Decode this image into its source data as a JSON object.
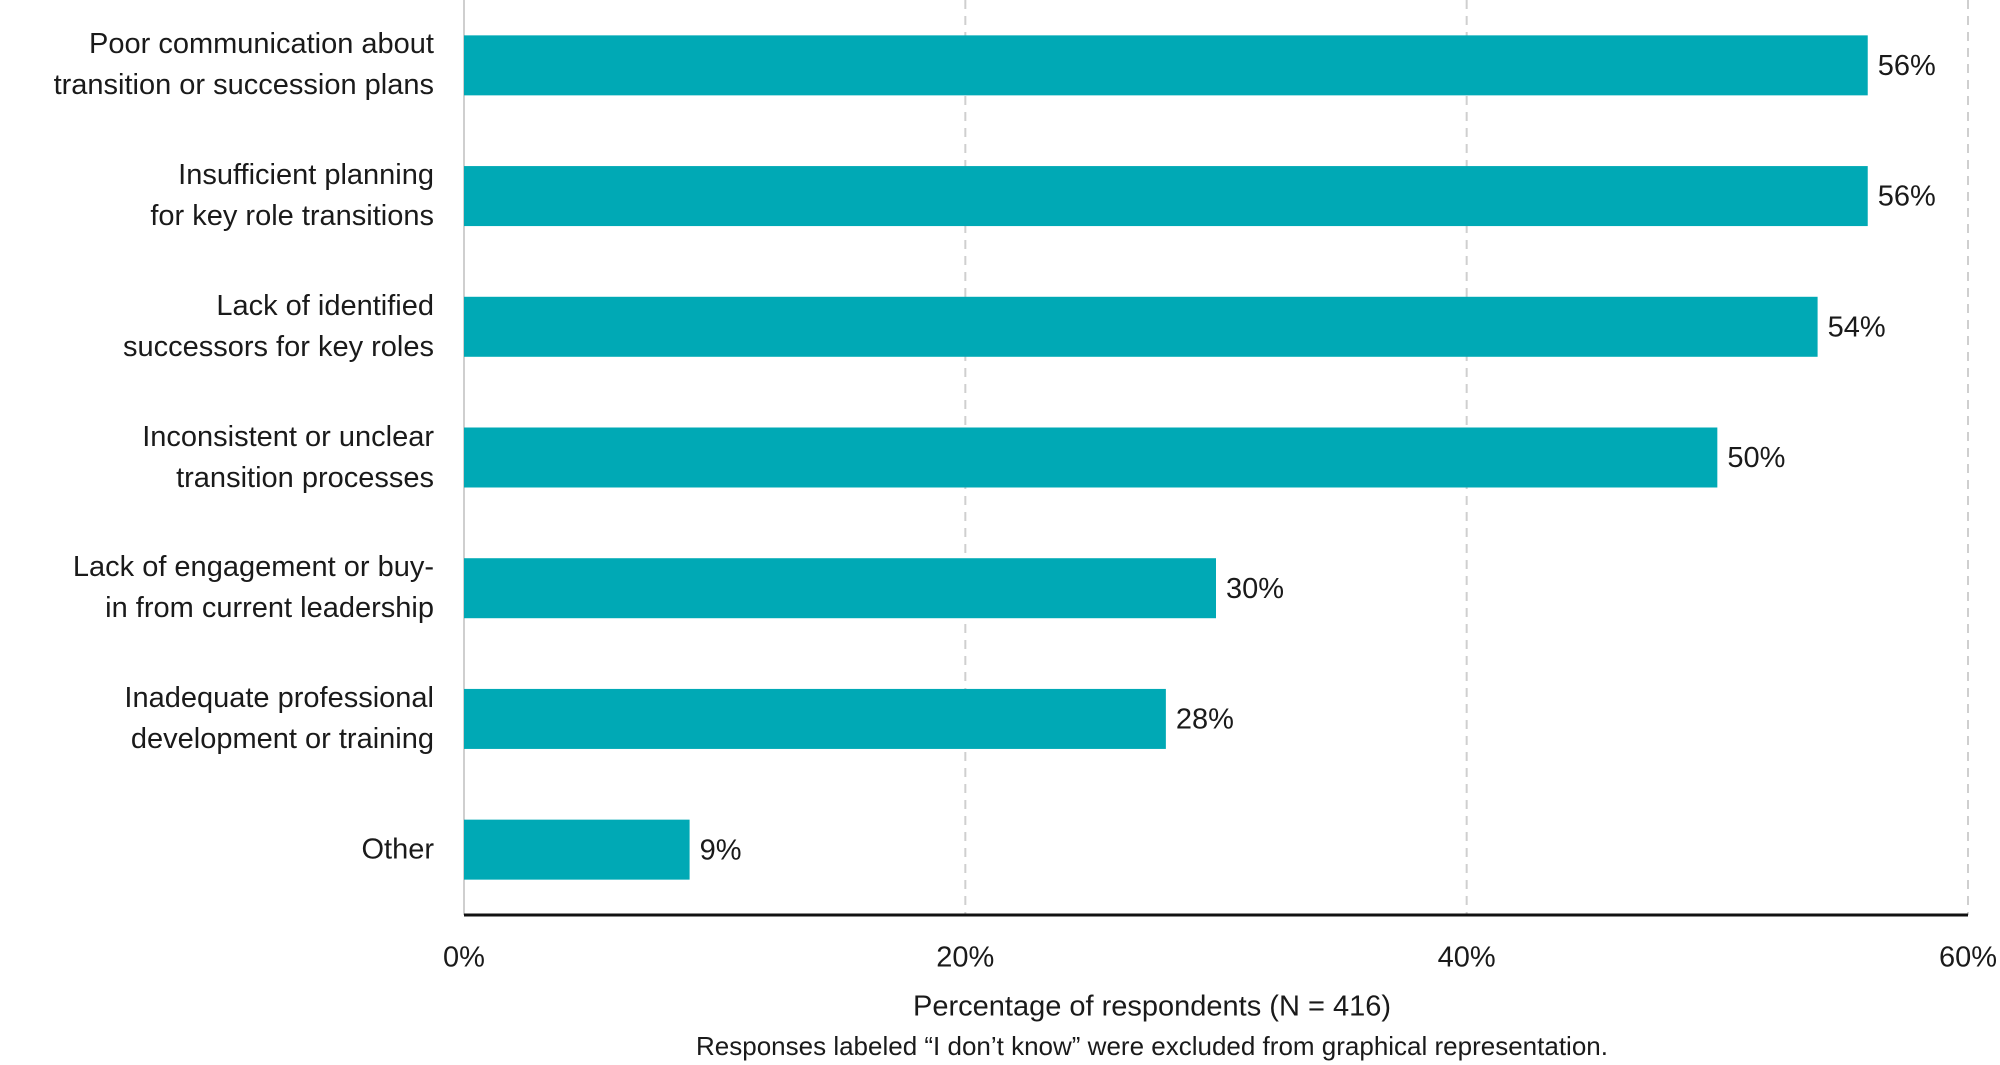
{
  "chart_data": {
    "type": "bar",
    "orientation": "horizontal",
    "categories": [
      "Poor communication about transition or succession plans",
      "Insufficient planning for key role transitions",
      "Lack of identified successors for key roles",
      "Inconsistent or unclear transition processes",
      "Lack of engagement or buy-in from current leadership",
      "Inadequate professional development or training",
      "Other"
    ],
    "values": [
      56,
      56,
      54,
      50,
      30,
      28,
      9
    ],
    "value_labels": [
      "56%",
      "56%",
      "54%",
      "50%",
      "30%",
      "28%",
      "9%"
    ],
    "color": "#00a9b5",
    "xlim": [
      0,
      60
    ],
    "xticks": [
      {
        "value": 0,
        "label": "0%"
      },
      {
        "value": 20,
        "label": "20%"
      },
      {
        "value": 40,
        "label": "40%"
      },
      {
        "value": 60,
        "label": "60%"
      }
    ],
    "grid": true,
    "xlabel": "Percentage of respondents (N = 416)",
    "note": "Responses labeled “I don’t know” were excluded from graphical representation."
  }
}
